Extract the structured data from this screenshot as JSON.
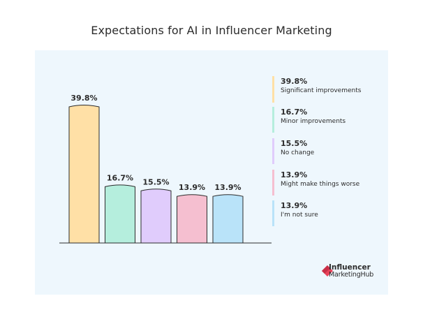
{
  "chart_data": {
    "type": "bar",
    "title": "Expectations for AI in Influencer Marketing",
    "categories": [
      "Significant improvements",
      "Minor improvements",
      "No change",
      "Might make things worse",
      "I'm not sure"
    ],
    "values": [
      39.8,
      16.7,
      15.5,
      13.9,
      13.9
    ],
    "value_labels": [
      "39.8%",
      "16.7%",
      "15.5%",
      "13.9%",
      "13.9%"
    ],
    "colors": [
      "#ffe0a6",
      "#b5eedd",
      "#e0ccfc",
      "#f5bfd0",
      "#b9e3f9"
    ],
    "xlabel": "",
    "ylabel": "",
    "ylim": [
      0,
      41
    ],
    "grid": false,
    "legend_position": "right"
  },
  "brand": {
    "line1": "Influencer",
    "line2": "MarketingHub",
    "icon": "influencer-marketing-hub-logo-icon",
    "color": "#e8435a"
  }
}
